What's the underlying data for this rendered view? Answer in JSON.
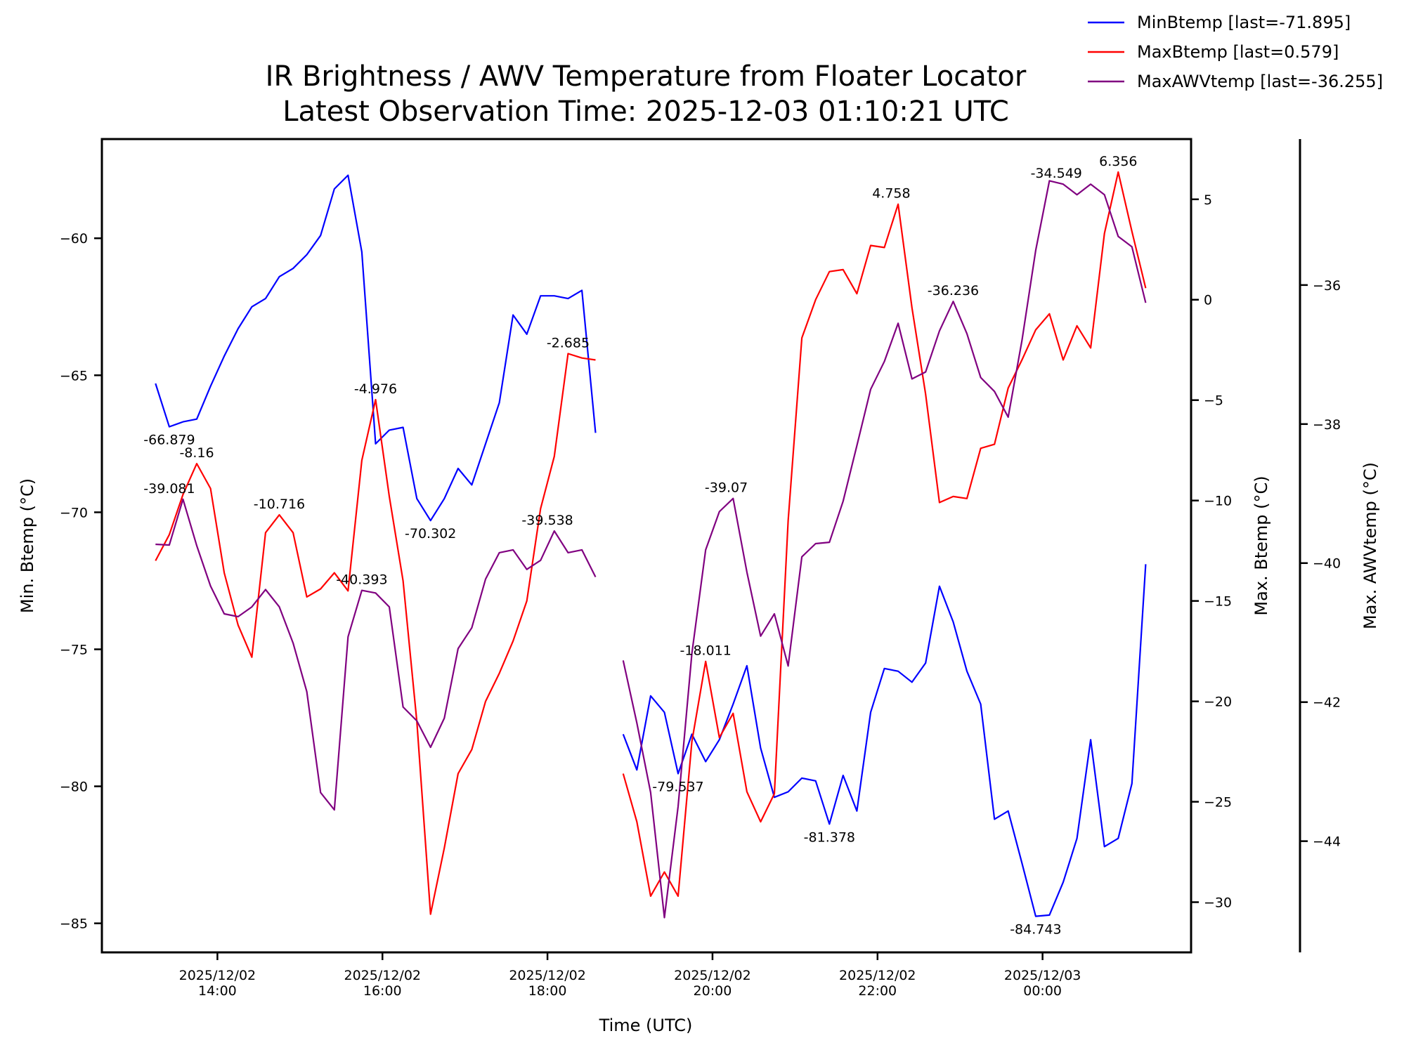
{
  "chart_data": {
    "type": "line",
    "title": "IR Brightness / AWV Temperature from Floater Locator",
    "subtitle": "Latest Observation Time: 2025-12-03 01:10:21 UTC",
    "xlabel": "Time (UTC)",
    "xlim": [
      12.6,
      25.8
    ],
    "x_ticks": [
      {
        "x": 14,
        "date": "2025/12/02",
        "time": "14:00"
      },
      {
        "x": 16,
        "date": "2025/12/02",
        "time": "16:00"
      },
      {
        "x": 18,
        "date": "2025/12/02",
        "time": "18:00"
      },
      {
        "x": 20,
        "date": "2025/12/02",
        "time": "20:00"
      },
      {
        "x": 22,
        "date": "2025/12/02",
        "time": "22:00"
      },
      {
        "x": 24,
        "date": "2025/12/03",
        "time": "00:00"
      }
    ],
    "axes": {
      "left": {
        "label": "Min. Btemp (°C)",
        "ylim": [
          -86.06,
          -56.38
        ],
        "ticks": [
          -60,
          -65,
          -70,
          -75,
          -80,
          -85
        ],
        "tick_labels": [
          "−60",
          "−65",
          "−70",
          "−75",
          "−80",
          "−85"
        ]
      },
      "right": {
        "label": "Max. Btemp (°C)",
        "ylim": [
          -32.5,
          8.0
        ],
        "ticks": [
          5,
          0,
          -5,
          -10,
          -15,
          -20,
          -25,
          -30
        ],
        "tick_labels": [
          "5",
          "0",
          "−5",
          "−10",
          "−15",
          "−20",
          "−25",
          "−30"
        ]
      },
      "right2": {
        "label": "Max. AWVtemp (°C)",
        "ylim": [
          -45.6,
          -33.9
        ],
        "ticks": [
          -36,
          -38,
          -40,
          -42,
          -44
        ],
        "tick_labels": [
          "−36",
          "−38",
          "−40",
          "−42",
          "−44"
        ]
      }
    },
    "series": [
      {
        "name": "MinBtemp",
        "legend": "MinBtemp [last=-71.895]",
        "color": "#0000ff",
        "axis": "left",
        "segments": [
          {
            "x": [
              13.25,
              13.417,
              13.583,
              13.75,
              13.917,
              14.083,
              14.25,
              14.417,
              14.583,
              14.75,
              14.917,
              15.083,
              15.25,
              15.417,
              15.583,
              15.75,
              15.917,
              16.083,
              16.25,
              16.417,
              16.583,
              16.75,
              16.917,
              17.083,
              17.25,
              17.417,
              17.583,
              17.75,
              17.917,
              18.083,
              18.25,
              18.417,
              18.583
            ],
            "y": [
              -65.3,
              -66.879,
              -66.7,
              -66.6,
              -65.4,
              -64.3,
              -63.3,
              -62.5,
              -62.2,
              -61.4,
              -61.1,
              -60.6,
              -59.9,
              -58.2,
              -57.7,
              -60.5,
              -67.5,
              -67.0,
              -66.9,
              -69.5,
              -70.302,
              -69.5,
              -68.4,
              -69.0,
              -67.5,
              -66.0,
              -62.8,
              -63.5,
              -62.1,
              -62.1,
              -62.2,
              -61.9,
              -67.1
            ]
          },
          {
            "x": [
              18.917,
              19.083,
              19.25,
              19.417,
              19.583,
              19.75,
              19.917,
              20.083,
              20.25,
              20.417,
              20.583,
              20.75,
              20.917,
              21.083,
              21.25,
              21.417,
              21.583,
              21.75,
              21.917,
              22.083,
              22.25,
              22.417,
              22.583,
              22.75,
              22.917,
              23.083,
              23.25,
              23.417,
              23.583,
              23.75,
              23.917,
              24.083,
              24.25,
              24.417,
              24.583,
              24.75,
              24.917,
              25.083,
              25.25
            ],
            "y": [
              -78.1,
              -79.4,
              -76.7,
              -77.3,
              -79.537,
              -78.1,
              -79.1,
              -78.3,
              -77.0,
              -75.6,
              -78.6,
              -80.4,
              -80.2,
              -79.7,
              -79.8,
              -81.378,
              -79.6,
              -80.9,
              -77.3,
              -75.7,
              -75.8,
              -76.2,
              -75.5,
              -72.7,
              -74.0,
              -75.8,
              -77.0,
              -81.2,
              -80.9,
              -82.8,
              -84.743,
              -84.7,
              -83.5,
              -81.9,
              -78.3,
              -82.2,
              -81.9,
              -79.9,
              -71.895
            ]
          }
        ],
        "annotations": [
          {
            "x": 13.417,
            "y": -66.879,
            "text": "-66.879",
            "pos": "below"
          },
          {
            "x": 16.583,
            "y": -70.302,
            "text": "-70.302",
            "pos": "below"
          },
          {
            "x": 19.583,
            "y": -79.537,
            "text": "-79.537",
            "pos": "below"
          },
          {
            "x": 21.417,
            "y": -81.378,
            "text": "-81.378",
            "pos": "below"
          },
          {
            "x": 23.917,
            "y": -84.743,
            "text": "-84.743",
            "pos": "below"
          }
        ]
      },
      {
        "name": "MaxBtemp",
        "legend": "MaxBtemp [last=0.579]",
        "color": "#ff0000",
        "axis": "right",
        "segments": [
          {
            "x": [
              13.25,
              13.417,
              13.583,
              13.75,
              13.917,
              14.083,
              14.25,
              14.417,
              14.583,
              14.75,
              14.917,
              15.083,
              15.25,
              15.417,
              15.583,
              15.75,
              15.917,
              16.083,
              16.25,
              16.417,
              16.583,
              16.75,
              16.917,
              17.083,
              17.25,
              17.417,
              17.583,
              17.75,
              17.917,
              18.083,
              18.25,
              18.417,
              18.583
            ],
            "y": [
              -13.0,
              -11.7,
              -9.7,
              -8.16,
              -9.4,
              -13.6,
              -16.2,
              -17.8,
              -11.6,
              -10.716,
              -11.6,
              -14.8,
              -14.4,
              -13.6,
              -14.5,
              -8.0,
              -4.976,
              -9.8,
              -14.0,
              -21.0,
              -30.6,
              -27.3,
              -23.6,
              -22.4,
              -20.0,
              -18.6,
              -17.0,
              -15.0,
              -10.4,
              -7.8,
              -2.685,
              -2.9,
              -3.0
            ]
          },
          {
            "x": [
              18.917,
              19.083,
              19.25,
              19.417,
              19.583,
              19.75,
              19.917,
              20.083,
              20.25,
              20.417,
              20.583,
              20.75,
              20.917,
              21.083,
              21.25,
              21.417,
              21.583,
              21.75,
              21.917,
              22.083,
              22.25,
              22.417,
              22.583,
              22.75,
              22.917,
              23.083,
              23.25,
              23.417,
              23.583,
              23.75,
              23.917,
              24.083,
              24.25,
              24.417,
              24.583,
              24.75,
              24.917,
              25.083,
              25.25
            ],
            "y": [
              -23.6,
              -26.0,
              -29.7,
              -28.5,
              -29.7,
              -22.0,
              -18.011,
              -21.8,
              -20.6,
              -24.5,
              -26.0,
              -24.6,
              -11.0,
              -1.9,
              0.0,
              1.4,
              1.5,
              0.3,
              2.7,
              2.6,
              4.758,
              -0.4,
              -4.7,
              -10.1,
              -9.8,
              -9.9,
              -7.4,
              -7.2,
              -4.4,
              -3.0,
              -1.5,
              -0.7,
              -3.0,
              -1.3,
              -2.4,
              3.3,
              6.356,
              3.4,
              0.579
            ]
          }
        ],
        "annotations": [
          {
            "x": 13.75,
            "y": -8.16,
            "text": "-8.16",
            "pos": "above"
          },
          {
            "x": 14.75,
            "y": -10.716,
            "text": "-10.716",
            "pos": "above"
          },
          {
            "x": 15.917,
            "y": -4.976,
            "text": "-4.976",
            "pos": "above"
          },
          {
            "x": 18.25,
            "y": -2.685,
            "text": "-2.685",
            "pos": "above"
          },
          {
            "x": 19.917,
            "y": -18.011,
            "text": "-18.011",
            "pos": "above"
          },
          {
            "x": 22.167,
            "y": 4.758,
            "text": "4.758",
            "pos": "above"
          },
          {
            "x": 24.917,
            "y": 6.356,
            "text": "6.356",
            "pos": "above"
          }
        ]
      },
      {
        "name": "MaxAWVtemp",
        "legend": "MaxAWVtemp [last=-36.255]",
        "color": "#800080",
        "axis": "right2",
        "segments": [
          {
            "x": [
              13.25,
              13.417,
              13.583,
              13.75,
              13.917,
              14.083,
              14.25,
              14.417,
              14.583,
              14.75,
              14.917,
              15.083,
              15.25,
              15.417,
              15.583,
              15.75,
              15.917,
              16.083,
              16.25,
              16.417,
              16.583,
              16.75,
              16.917,
              17.083,
              17.25,
              17.417,
              17.583,
              17.75,
              17.917,
              18.083,
              18.25,
              18.417,
              18.583
            ],
            "y": [
              -39.73,
              -39.74,
              -39.081,
              -39.75,
              -40.33,
              -40.73,
              -40.77,
              -40.63,
              -40.38,
              -40.63,
              -41.15,
              -41.85,
              -43.3,
              -43.55,
              -41.06,
              -40.393,
              -40.43,
              -40.63,
              -42.07,
              -42.27,
              -42.65,
              -42.23,
              -41.23,
              -40.93,
              -40.23,
              -39.85,
              -39.81,
              -40.09,
              -39.96,
              -39.538,
              -39.85,
              -39.81,
              -40.2
            ]
          },
          {
            "x": [
              18.917,
              19.083,
              19.25,
              19.417,
              19.583,
              19.75,
              19.917,
              20.083,
              20.25,
              20.417,
              20.583,
              20.75,
              20.917,
              21.083,
              21.25,
              21.417,
              21.583,
              21.75,
              21.917,
              22.083,
              22.25,
              22.417,
              22.583,
              22.75,
              22.917,
              23.083,
              23.25,
              23.417,
              23.583,
              23.75,
              23.917,
              24.083,
              24.25,
              24.417,
              24.583,
              24.75,
              24.917,
              25.083,
              25.25
            ],
            "y": [
              -41.4,
              -42.3,
              -43.3,
              -45.1,
              -43.5,
              -41.3,
              -39.81,
              -39.26,
              -39.07,
              -40.13,
              -41.05,
              -40.73,
              -41.48,
              -39.91,
              -39.72,
              -39.7,
              -39.11,
              -38.31,
              -37.5,
              -37.1,
              -36.55,
              -37.35,
              -37.25,
              -36.66,
              -36.236,
              -36.7,
              -37.33,
              -37.53,
              -37.9,
              -36.8,
              -35.5,
              -34.5,
              -34.549,
              -34.7,
              -34.55,
              -34.7,
              -35.3,
              -35.45,
              -36.255
            ]
          }
        ],
        "annotations": [
          {
            "x": 13.417,
            "y": -39.081,
            "text": "-39.081",
            "pos": "above"
          },
          {
            "x": 15.75,
            "y": -40.393,
            "text": "-40.393",
            "pos": "above"
          },
          {
            "x": 18.0,
            "y": -39.538,
            "text": "-39.538",
            "pos": "above"
          },
          {
            "x": 20.167,
            "y": -39.07,
            "text": "-39.07",
            "pos": "above"
          },
          {
            "x": 22.917,
            "y": -36.236,
            "text": "-36.236",
            "pos": "above"
          },
          {
            "x": 24.167,
            "y": -34.549,
            "text": "-34.549",
            "pos": "above"
          }
        ]
      }
    ],
    "legend_position": "top-right"
  }
}
